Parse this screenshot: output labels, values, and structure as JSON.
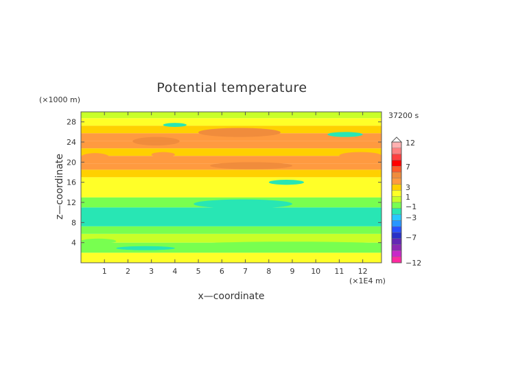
{
  "chart_data": {
    "type": "heatmap",
    "title": "Potential temperature",
    "xlabel": "x—coordinate",
    "ylabel": "z—coordinate",
    "x_unit": "(×1E4 m)",
    "y_unit": "(×1000 m)",
    "time_label": "37200 s",
    "xlim": [
      0,
      12.8
    ],
    "ylim": [
      0,
      30
    ],
    "x_ticks": [
      "1",
      "2",
      "3",
      "4",
      "5",
      "6",
      "7",
      "8",
      "9",
      "10",
      "11",
      "12"
    ],
    "y_ticks": [
      "4",
      "8",
      "12",
      "16",
      "20",
      "24",
      "28"
    ],
    "colorbar": {
      "labels": [
        "12",
        "7",
        "3",
        "1",
        "−1",
        "−3",
        "−7",
        "−12"
      ],
      "colors": [
        "#ffb0b0",
        "#ff8080",
        "#ff4040",
        "#ff0000",
        "#ff5a28",
        "#f08c3c",
        "#ff9a40",
        "#ffd000",
        "#ffff28",
        "#c8ff28",
        "#78ff50",
        "#28e6b4",
        "#28c8ff",
        "#2896ff",
        "#2850ff",
        "#2830c8",
        "#6428b4",
        "#8c28b4",
        "#c828c8",
        "#ff28a0"
      ]
    },
    "levels": [
      {
        "z": 1.0,
        "value": 0.5
      },
      {
        "z": 3.0,
        "value": -0.5
      },
      {
        "z": 5.0,
        "value": 0.3
      },
      {
        "z": 6.5,
        "value": -0.4
      },
      {
        "z": 8.0,
        "value": -1.1
      },
      {
        "z": 10.0,
        "value": -1.0
      },
      {
        "z": 12.0,
        "value": -0.3
      },
      {
        "z": 14.0,
        "value": 0.6
      },
      {
        "z": 16.0,
        "value": 0.9
      },
      {
        "z": 18.0,
        "value": 1.4
      },
      {
        "z": 19.0,
        "value": 2.2
      },
      {
        "z": 20.5,
        "value": 1.8
      },
      {
        "z": 22.0,
        "value": 1.0
      },
      {
        "z": 23.5,
        "value": 1.9
      },
      {
        "z": 25.0,
        "value": 2.2
      },
      {
        "z": 26.5,
        "value": 1.3
      },
      {
        "z": 28.0,
        "value": 0.6
      },
      {
        "z": 29.5,
        "value": 0.2
      }
    ],
    "patches": [
      {
        "x": [
          0.0,
          1.2
        ],
        "z": [
          20.2,
          21.8
        ],
        "value": 2.4
      },
      {
        "x": [
          2.2,
          4.2
        ],
        "z": [
          23.3,
          25.0
        ],
        "value": 2.6
      },
      {
        "x": [
          5.0,
          8.5
        ],
        "z": [
          25.0,
          26.8
        ],
        "value": 2.5
      },
      {
        "x": [
          5.5,
          9.0
        ],
        "z": [
          18.6,
          20.0
        ],
        "value": 2.5
      },
      {
        "x": [
          11.0,
          12.8
        ],
        "z": [
          20.6,
          22.0
        ],
        "value": 2.4
      },
      {
        "x": [
          3.0,
          4.0
        ],
        "z": [
          21.0,
          22.0
        ],
        "value": 2.2
      },
      {
        "x": [
          9.5,
          10.8
        ],
        "z": [
          22.8,
          24.0
        ],
        "value": 2.0
      },
      {
        "x": [
          0.0,
          1.5
        ],
        "z": [
          3.8,
          4.8
        ],
        "value": -0.6
      },
      {
        "x": [
          1.5,
          4.0
        ],
        "z": [
          2.5,
          3.3
        ],
        "value": -0.8
      },
      {
        "x": [
          5.0,
          12.8
        ],
        "z": [
          3.2,
          4.2
        ],
        "value": -0.5
      },
      {
        "x": [
          4.8,
          9.0
        ],
        "z": [
          10.8,
          12.6
        ],
        "value": -0.9
      },
      {
        "x": [
          8.0,
          9.5
        ],
        "z": [
          15.5,
          16.5
        ],
        "value": -0.9
      },
      {
        "x": [
          3.5,
          4.5
        ],
        "z": [
          27.0,
          27.8
        ],
        "value": -0.9
      },
      {
        "x": [
          10.5,
          12.0
        ],
        "z": [
          25.0,
          26.0
        ],
        "value": -0.8
      }
    ]
  }
}
